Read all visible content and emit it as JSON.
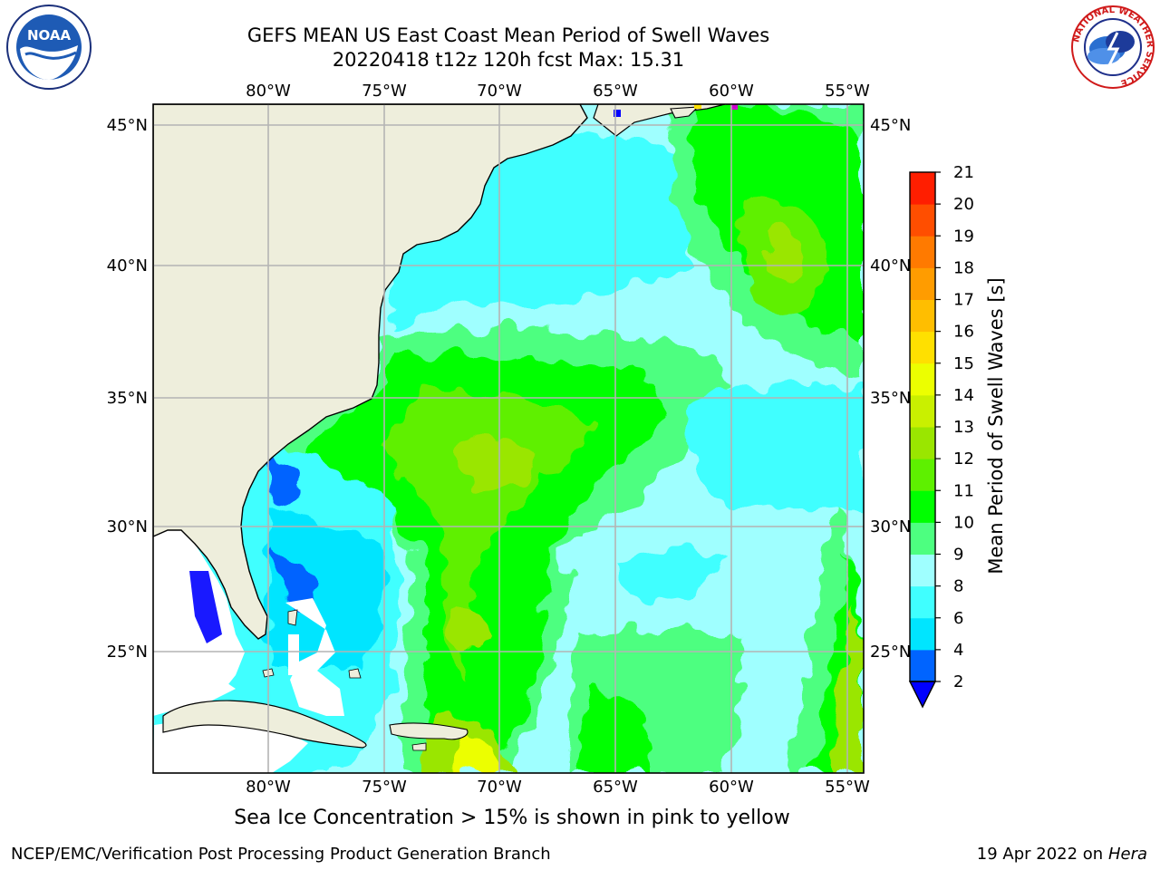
{
  "header": {
    "title_line_1": "GEFS MEAN US East Coast Mean Period of Swell Waves",
    "title_line_2": "20220418 t12z 120h fcst   Max: 15.31"
  },
  "caption": "Sea Ice Concentration > 15% is shown in pink to yellow",
  "footer": {
    "left": "NCEP/EMC/Verification Post Processing Product Generation Branch",
    "date": "19 Apr 2022 on ",
    "machine": "Hera"
  },
  "logos": {
    "noaa": "NOAA",
    "nws_ring": "NATIONAL WEATHER SERVICE"
  },
  "map": {
    "lon_labels": [
      "80°W",
      "75°W",
      "70°W",
      "65°W",
      "60°W",
      "55°W"
    ],
    "lat_labels_left": [
      "45°N",
      "40°N",
      "35°N",
      "30°N",
      "25°N"
    ],
    "lat_labels_right": [
      "45°N",
      "40°N",
      "35°N",
      "30°N",
      "25°N"
    ],
    "extent": {
      "lon_min": -85,
      "lon_max": -54.2,
      "lat_min": 20.3,
      "lat_max": 45.8
    },
    "colors": {
      "land": "#eeeedc",
      "no_data": "#ffffff",
      "grid": "#b4b4b4",
      "coast": "#000000"
    }
  },
  "colorbar": {
    "label": "Mean Period of Swell Waves [s]",
    "ticks": [
      "2",
      "4",
      "6",
      "8",
      "9",
      "10",
      "11",
      "12",
      "13",
      "14",
      "15",
      "16",
      "17",
      "18",
      "19",
      "20",
      "21"
    ],
    "colors": [
      "#0000ff",
      "#0064ff",
      "#00e5ff",
      "#40ffff",
      "#9fffff",
      "#4dff80",
      "#00ff00",
      "#5ef000",
      "#9ae600",
      "#c9f000",
      "#ecff00",
      "#ffe000",
      "#ffbe00",
      "#ff9c00",
      "#ff7a00",
      "#ff4e00",
      "#ff1e00",
      "#ff0000"
    ]
  }
}
